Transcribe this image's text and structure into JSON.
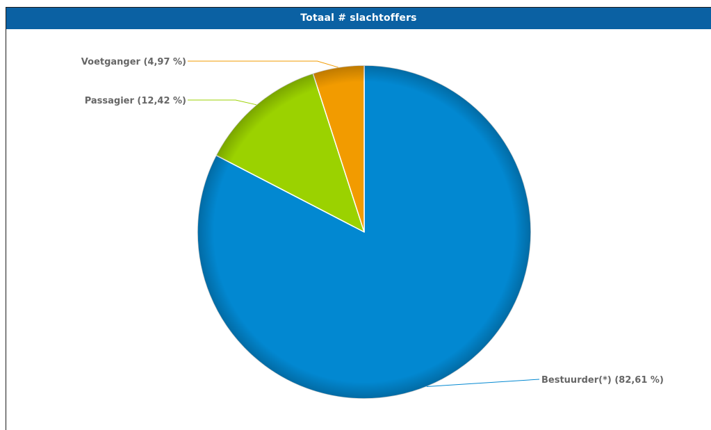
{
  "chart_data": {
    "type": "pie",
    "title": "Totaal # slachtoffers",
    "slices": [
      {
        "name": "Bestuurder(*)",
        "value": 82.61,
        "label": "Bestuurder(*) (82,61 %)",
        "color": "#0288d1"
      },
      {
        "name": "Passagier",
        "value": 12.42,
        "label": "Passagier (12,42 %)",
        "color": "#9bd200"
      },
      {
        "name": "Voetganger",
        "value": 4.97,
        "label": "Voetganger (4,97 %)",
        "color": "#f29b00"
      }
    ]
  },
  "colors": {
    "title_bar": "#0b61a3",
    "title_text": "#ffffff",
    "label_text": "#666666"
  }
}
